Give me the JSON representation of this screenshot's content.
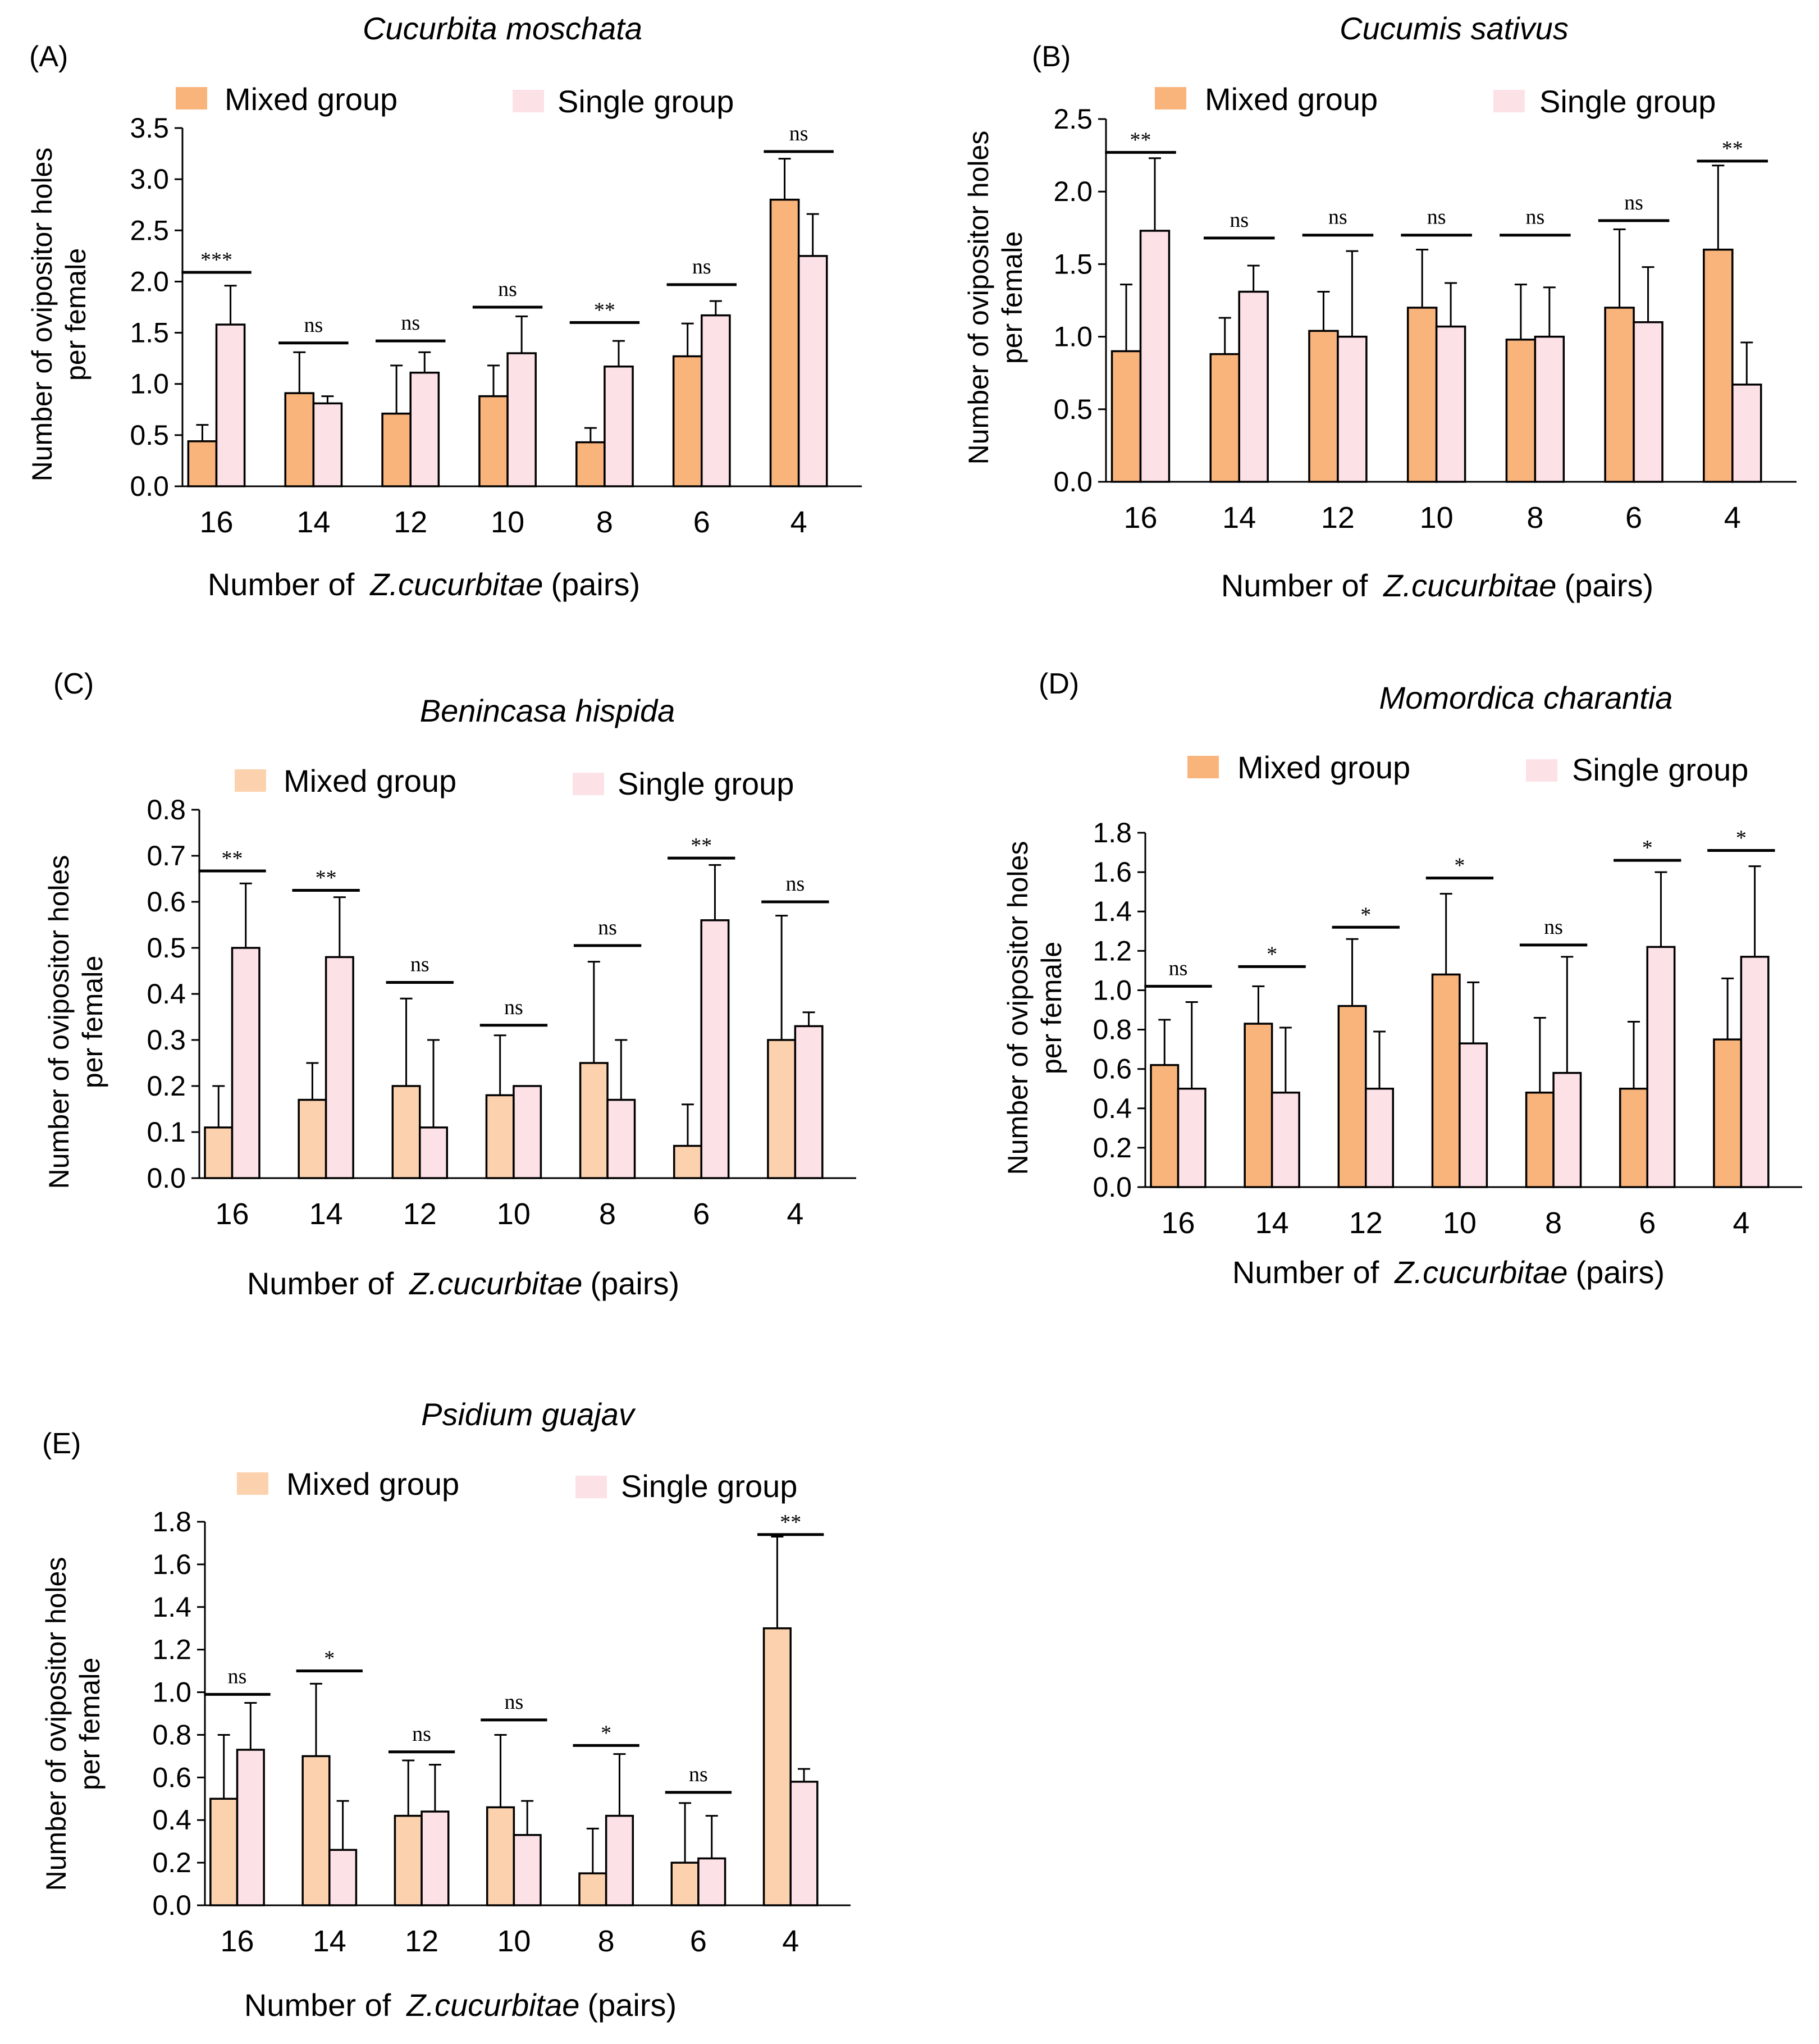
{
  "legend": {
    "mixed": "Mixed group",
    "single": "Single group"
  },
  "colors": {
    "mixed_dark": "#F9B47C",
    "mixed_light": "#FCD2AE",
    "single": "#FCE1E6"
  },
  "chart_data": [
    {
      "panel": "(A)",
      "title": "Cucurbita moschata",
      "type": "bar",
      "categories": [
        "16",
        "14",
        "12",
        "10",
        "8",
        "6",
        "4"
      ],
      "xlabel_pre": "Number of",
      "xlabel_species": "Z.cucurbitae",
      "xlabel_post": "(pairs)",
      "ylabel": [
        "Number of ovipositor holes",
        "per female"
      ],
      "ylim": [
        0,
        3.5
      ],
      "yticks": [
        "0.0",
        "0.5",
        "1.0",
        "1.5",
        "2.0",
        "2.5",
        "3.0",
        "3.5"
      ],
      "series": [
        {
          "name": "Mixed group",
          "values": [
            0.44,
            0.91,
            0.71,
            0.88,
            0.43,
            1.27,
            2.8
          ],
          "errors": [
            0.16,
            0.4,
            0.47,
            0.3,
            0.14,
            0.32,
            0.4
          ]
        },
        {
          "name": "Single group",
          "values": [
            1.58,
            0.81,
            1.11,
            1.3,
            1.17,
            1.67,
            2.25
          ],
          "errors": [
            0.38,
            0.07,
            0.2,
            0.36,
            0.25,
            0.14,
            0.41
          ]
        }
      ],
      "significance": [
        "***",
        "ns",
        "ns",
        "ns",
        "**",
        "ns",
        "ns"
      ],
      "sig_heights": [
        2.09,
        1.4,
        1.42,
        1.75,
        1.6,
        1.97,
        3.27
      ]
    },
    {
      "panel": "(B)",
      "title": "Cucumis sativus",
      "type": "bar",
      "categories": [
        "16",
        "14",
        "12",
        "10",
        "8",
        "6",
        "4"
      ],
      "xlabel_pre": "Number of",
      "xlabel_species": "Z.cucurbitae",
      "xlabel_post": "(pairs)",
      "ylabel": [
        "Number of ovipositor holes",
        "per female"
      ],
      "ylim": [
        0,
        2.5
      ],
      "yticks": [
        "0.0",
        "0.5",
        "1.0",
        "1.5",
        "2.0",
        "2.5"
      ],
      "series": [
        {
          "name": "Mixed group",
          "values": [
            0.9,
            0.88,
            1.04,
            1.2,
            0.98,
            1.2,
            1.6
          ],
          "errors": [
            0.46,
            0.25,
            0.27,
            0.4,
            0.38,
            0.54,
            0.58
          ]
        },
        {
          "name": "Single group",
          "values": [
            1.73,
            1.31,
            1.0,
            1.07,
            1.0,
            1.1,
            0.67
          ],
          "errors": [
            0.5,
            0.18,
            0.59,
            0.3,
            0.34,
            0.38,
            0.29
          ]
        }
      ],
      "significance": [
        "**",
        "ns",
        "ns",
        "ns",
        "ns",
        "ns",
        "**"
      ],
      "sig_heights": [
        2.27,
        1.68,
        1.7,
        1.7,
        1.7,
        1.8,
        2.21
      ]
    },
    {
      "panel": "(C)",
      "title": "Benincasa hispida",
      "type": "bar",
      "categories": [
        "16",
        "14",
        "12",
        "10",
        "8",
        "6",
        "4"
      ],
      "xlabel_pre": "Number of",
      "xlabel_species": "Z.cucurbitae",
      "xlabel_post": "(pairs)",
      "ylabel": [
        "Number of ovipositor holes",
        "per female"
      ],
      "ylim": [
        0,
        0.8
      ],
      "yticks": [
        "0.0",
        "0.1",
        "0.2",
        "0.3",
        "0.4",
        "0.5",
        "0.6",
        "0.7",
        "0.8"
      ],
      "series": [
        {
          "name": "Mixed group",
          "values": [
            0.11,
            0.17,
            0.2,
            0.18,
            0.25,
            0.07,
            0.3
          ],
          "errors": [
            0.09,
            0.08,
            0.19,
            0.13,
            0.22,
            0.09,
            0.27
          ]
        },
        {
          "name": "Single group",
          "values": [
            0.5,
            0.48,
            0.11,
            0.2,
            0.17,
            0.56,
            0.33
          ],
          "errors": [
            0.14,
            0.13,
            0.19,
            0.0,
            0.13,
            0.12,
            0.03
          ]
        }
      ],
      "significance": [
        "**",
        "**",
        "ns",
        "ns",
        "ns",
        "**",
        "ns"
      ],
      "sig_heights": [
        0.667,
        0.625,
        0.425,
        0.332,
        0.505,
        0.695,
        0.6
      ]
    },
    {
      "panel": "(D)",
      "title": "Momordica charantia",
      "type": "bar",
      "categories": [
        "16",
        "14",
        "12",
        "10",
        "8",
        "6",
        "4"
      ],
      "xlabel_pre": "Number of",
      "xlabel_species": "Z.cucurbitae",
      "xlabel_post": "(pairs)",
      "ylabel": [
        "Number of ovipositor holes",
        "per female"
      ],
      "ylim": [
        0,
        1.8
      ],
      "yticks": [
        "0.0",
        "0.2",
        "0.4",
        "0.6",
        "0.8",
        "1.0",
        "1.2",
        "1.4",
        "1.6",
        "1.8"
      ],
      "series": [
        {
          "name": "Mixed group",
          "values": [
            0.62,
            0.83,
            0.92,
            1.08,
            0.48,
            0.5,
            0.75
          ],
          "errors": [
            0.23,
            0.19,
            0.34,
            0.41,
            0.38,
            0.34,
            0.31
          ]
        },
        {
          "name": "Single group",
          "values": [
            0.5,
            0.48,
            0.5,
            0.73,
            0.58,
            1.22,
            1.17
          ],
          "errors": [
            0.44,
            0.33,
            0.29,
            0.31,
            0.59,
            0.38,
            0.46
          ]
        }
      ],
      "significance": [
        "ns",
        "*",
        "*",
        "*",
        "ns",
        "*",
        "*"
      ],
      "sig_heights": [
        1.02,
        1.12,
        1.32,
        1.57,
        1.23,
        1.66,
        1.71
      ]
    },
    {
      "panel": "(E)",
      "title": "Psidium guajav",
      "type": "bar",
      "categories": [
        "16",
        "14",
        "12",
        "10",
        "8",
        "6",
        "4"
      ],
      "xlabel_pre": "Number of",
      "xlabel_species": "Z.cucurbitae",
      "xlabel_post": "(pairs)",
      "ylabel": [
        "Number of ovipositor holes",
        "per female"
      ],
      "ylim": [
        0,
        1.8
      ],
      "yticks": [
        "0.0",
        "0.2",
        "0.4",
        "0.6",
        "0.8",
        "1.0",
        "1.2",
        "1.4",
        "1.6",
        "1.8"
      ],
      "series": [
        {
          "name": "Mixed group",
          "values": [
            0.5,
            0.7,
            0.42,
            0.46,
            0.15,
            0.2,
            1.3
          ],
          "errors": [
            0.3,
            0.34,
            0.26,
            0.34,
            0.21,
            0.28,
            0.43
          ]
        },
        {
          "name": "Single group",
          "values": [
            0.73,
            0.26,
            0.44,
            0.33,
            0.42,
            0.22,
            0.58
          ],
          "errors": [
            0.22,
            0.23,
            0.22,
            0.16,
            0.29,
            0.2,
            0.06
          ]
        }
      ],
      "significance": [
        "ns",
        "*",
        "ns",
        "ns",
        "*",
        "ns",
        "**"
      ],
      "sig_heights": [
        0.99,
        1.1,
        0.72,
        0.87,
        0.75,
        0.53,
        1.74
      ]
    }
  ]
}
